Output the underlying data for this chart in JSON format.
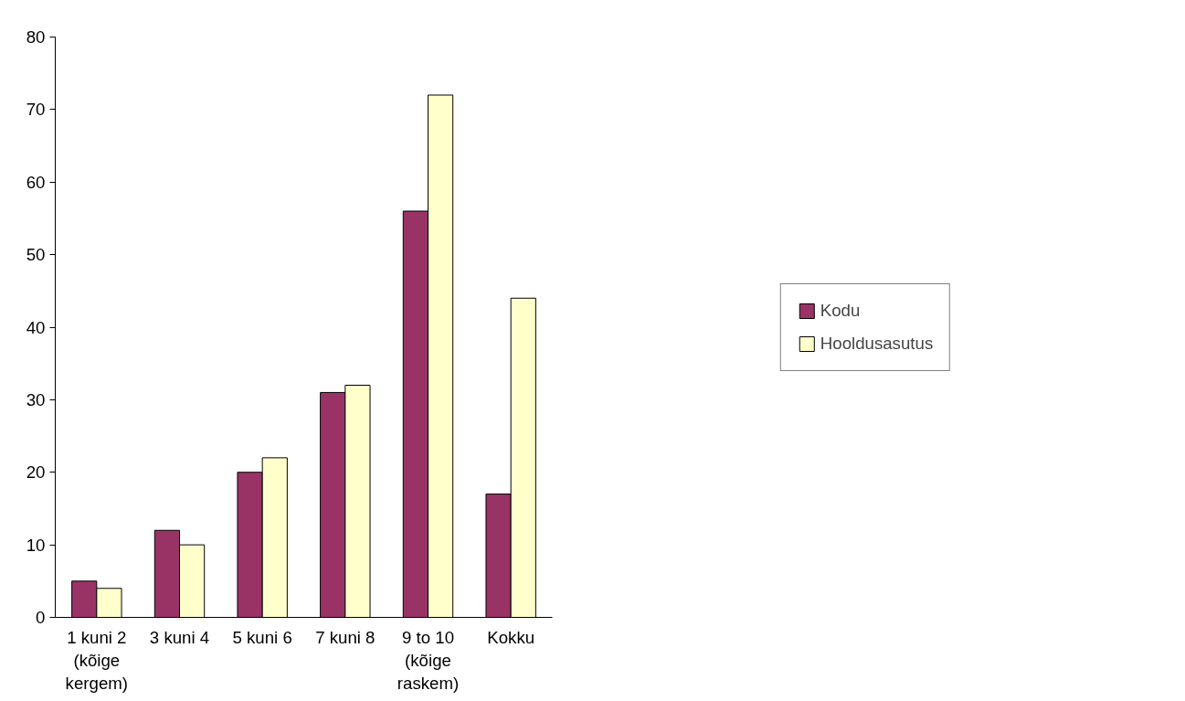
{
  "chart_data": {
    "type": "bar",
    "categories": [
      "1 kuni 2 (kõige kergem)",
      "3 kuni 4",
      "5 kuni 6",
      "7 kuni 8",
      "9 to 10 (kõige raskem)",
      "Kokku"
    ],
    "series": [
      {
        "name": "Kodu",
        "color": "#993366",
        "values": [
          5,
          12,
          20,
          31,
          56,
          17
        ]
      },
      {
        "name": "Hooldusasutus",
        "color": "#ffffcc",
        "values": [
          4,
          10,
          22,
          32,
          72,
          44
        ]
      }
    ],
    "ylim": [
      0,
      80
    ],
    "yticks": [
      0,
      10,
      20,
      30,
      40,
      50,
      60,
      70,
      80
    ],
    "grid": false,
    "legend": "right"
  }
}
